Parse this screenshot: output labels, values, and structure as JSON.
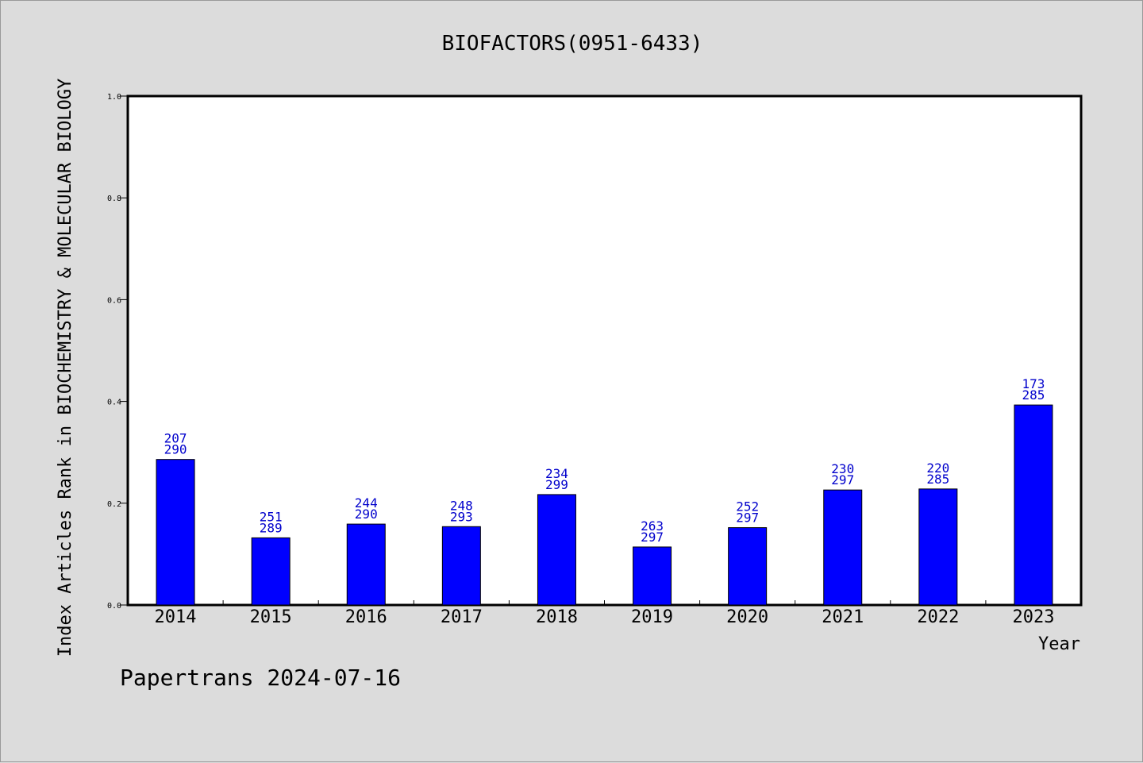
{
  "chart_data": {
    "type": "bar",
    "title": "BIOFACTORS(0951-6433)",
    "xlabel": "Year",
    "ylabel": "Index Articles Rank in BIOCHEMISTRY & MOLECULAR BIOLOGY",
    "ylim": [
      0,
      1.0
    ],
    "yticks": [
      "0.0",
      "0.2",
      "0.4",
      "0.6",
      "0.8",
      "1.0"
    ],
    "categories": [
      "2014",
      "2015",
      "2016",
      "2017",
      "2018",
      "2019",
      "2020",
      "2021",
      "2022",
      "2023"
    ],
    "values": [
      0.286,
      0.132,
      0.159,
      0.154,
      0.217,
      0.114,
      0.152,
      0.226,
      0.228,
      0.393
    ],
    "rank_labels": [
      "207",
      "251",
      "244",
      "248",
      "234",
      "263",
      "252",
      "230",
      "220",
      "173"
    ],
    "total_labels": [
      "290",
      "289",
      "290",
      "293",
      "299",
      "297",
      "297",
      "297",
      "285",
      "285"
    ],
    "bar_color": "#0000ff",
    "label_color": "#0000cc",
    "grid": false
  },
  "footer": "Papertrans 2024-07-16"
}
